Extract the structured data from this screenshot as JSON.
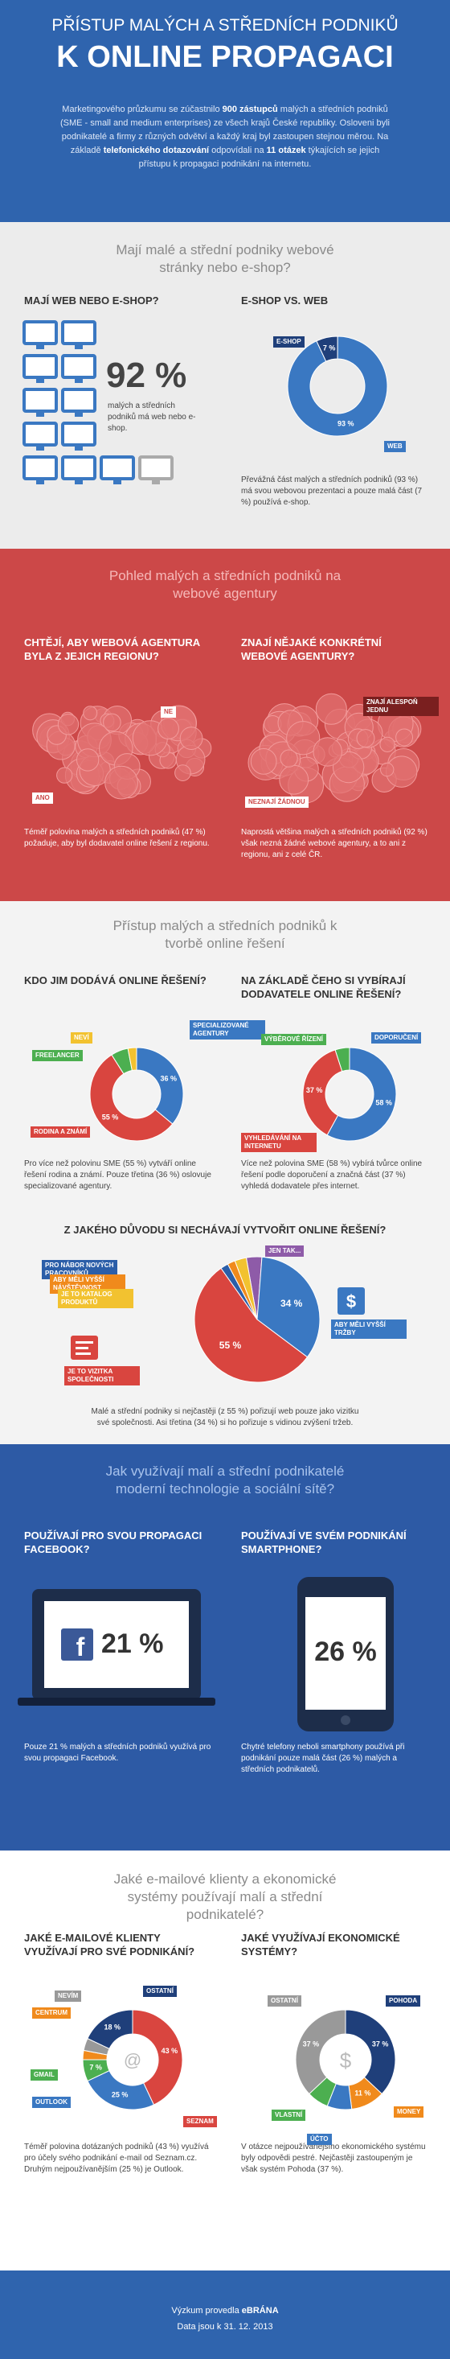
{
  "header": {
    "title_top": "PŘÍSTUP MALÝCH A STŘEDNÍCH PODNIKŮ",
    "title_main": "K ONLINE PROPAGACI",
    "intro": [
      "Marketingového průzkumu se zúčastnilo ",
      "900 zástupců",
      " malých a středních podniků (SME - small and medium enterprises) ze všech krajů České republiky. Osloveni byli podnikatelé a firmy z různých odvětví a každý kraj byl zastoupen stejnou měrou. Na základě ",
      "telefonického dotazování",
      " odpovídali na ",
      "11 otázek",
      " týkajících se jejich přístupu k propagaci podnikání na internetu."
    ]
  },
  "web": {
    "heading": "Mají malé a střední podniky webové stránky nebo e-shop?",
    "has_web": {
      "title": "MAJÍ WEB NEBO E-SHOP?",
      "value": 92,
      "value_label": "92 %",
      "caption": "malých a středních podniků má web nebo e-shop."
    },
    "eshop_vs_web": {
      "type": "donut",
      "title": "E-SHOP VS. WEB",
      "categories": [
        "E-SHOP",
        "WEB"
      ],
      "values": [
        7,
        93
      ],
      "value_labels": [
        "7 %",
        "93 %"
      ],
      "colors": [
        "#1f3f7a",
        "#3a78c2"
      ],
      "text": "Převážná část malých a středních podniků (93 %) má svou webovou prezentaci a pouze malá část (7 %) používá e-shop."
    }
  },
  "agencies": {
    "heading": "Pohled malých a středních podniků na webové agentury",
    "regional": {
      "title": "CHTĚJÍ, ABY WEBOVÁ AGENTURA BYLA Z JEJICH REGIONU?",
      "labels": [
        "NE",
        "ANO"
      ],
      "text": "Téměř polovina malých a středních podniků (47 %) požaduje, aby byl dodavatel online řešení z regionu."
    },
    "known": {
      "title": "ZNAJÍ NĚJAKÉ KONKRÉTNÍ WEBOVÉ AGENTURY?",
      "labels": [
        "ZNAJÍ ALESPOŇ JEDNU",
        "NEZNAJÍ ŽÁDNOU"
      ],
      "text": "Naprostá většina malých a středních podniků (92 %) však nezná žádné webové agentury, a to ani z regionu, ani z celé ČR."
    }
  },
  "solutions": {
    "heading": "Přístup malých a středních podniků k tvorbě online řešení",
    "supplier": {
      "type": "donut",
      "title": "KDO JIM DODÁVÁ ONLINE ŘEŠENÍ?",
      "categories": [
        "SPECIALIZOVANÉ AGENTURY",
        "RODINA A ZNÁMÍ",
        "FREELANCER",
        "NEVÍ"
      ],
      "values": [
        36,
        55,
        6,
        3
      ],
      "value_labels": [
        "36 %",
        "55 %",
        null,
        null
      ],
      "colors": [
        "#3a78c2",
        "#d9453f",
        "#4caf50",
        "#f2c230"
      ],
      "text": "Pro více než polovinu SME (55 %) vytváří online řešení rodina a známí. Pouze třetina (36 %) oslovuje specializované agentury."
    },
    "selection": {
      "type": "donut",
      "title": "NA ZÁKLADĚ ČEHO SI VYBÍRAJÍ DODAVATELE ONLINE ŘEŠENÍ?",
      "categories": [
        "DOPORUČENÍ",
        "VYHLEDÁVÁNÍ NA INTERNETU",
        "VÝBĚROVÉ ŘÍZENÍ"
      ],
      "values": [
        58,
        37,
        5
      ],
      "value_labels": [
        "58 %",
        "37 %",
        null
      ],
      "colors": [
        "#3a78c2",
        "#d9453f",
        "#4caf50"
      ],
      "text": "Více než polovina SME (58 %) vybírá tvůrce online řešení podle doporučení a značná část (37 %) vyhledá dodavatele přes internet."
    },
    "reasons": {
      "type": "pie",
      "title": "Z JAKÉHO DŮVODU SI NECHÁVAJÍ VYTVOŘIT ONLINE ŘEŠENÍ?",
      "categories": [
        "JEN TAK...",
        "ABY MĚLI VYŠŠÍ TRŽBY",
        "JE TO VIZITKA SPOLEČNOSTI",
        "PRO NÁBOR NOVÝCH PRACOVNÍKŮ",
        "ABY MĚLI VYŠŠÍ NÁVŠTĚVNOST",
        "JE TO KATALOG PRODUKTŮ"
      ],
      "values": [
        4,
        34,
        55,
        2,
        2,
        3
      ],
      "value_labels": [
        null,
        "34 %",
        "55 %",
        null,
        null,
        null
      ],
      "colors": [
        "#8e5ba8",
        "#3a78c2",
        "#d9453f",
        "#2b5ea8",
        "#f08a1c",
        "#f2c230"
      ],
      "text": "Malé a střední podniky si nejčastěji (z 55 %) pořizují web pouze jako vizitku své společnosti. Asi třetina (34 %) si ho pořizuje s vidinou zvýšení tržeb."
    }
  },
  "technology": {
    "heading": "Jak využívají malí a střední podnikatelé moderní technologie a sociální sítě?",
    "facebook": {
      "title": "POUŽÍVAJÍ PRO SVOU PROPAGACI FACEBOOK?",
      "value": 21,
      "value_label": "21 %",
      "text": "Pouze 21 % malých a středních podniků využívá pro svou propagaci Facebook."
    },
    "smartphone": {
      "title": "POUŽÍVAJÍ VE SVÉM PODNIKÁNÍ SMARTPHONE?",
      "value": 26,
      "value_label": "26 %",
      "text": "Chytré telefony neboli smartphony používá při podnikání pouze malá část (26 %) malých a středních podnikatelů."
    }
  },
  "systems": {
    "heading": "Jaké e-mailové klienty a ekonomické systémy používají malí a střední podnikatelé?",
    "email": {
      "type": "donut",
      "title": "JAKÉ E-MAILOVÉ KLIENTY VYUŽÍVAJÍ PRO SVÉ PODNIKÁNÍ?",
      "categories": [
        "SEZNAM",
        "OUTLOOK",
        "GMAIL",
        "CENTRUM",
        "NEVÍM",
        "OSTATNÍ"
      ],
      "values": [
        43,
        25,
        7,
        3,
        4,
        18
      ],
      "value_labels": [
        "43 %",
        "25 %",
        "7 %",
        null,
        null,
        "18 %"
      ],
      "colors": [
        "#d9453f",
        "#3a78c2",
        "#4caf50",
        "#f08a1c",
        "#999999",
        "#1f3f7a"
      ],
      "text": "Téměř polovina dotázaných podniků (43 %) využívá pro účely svého podnikání e-mail od Seznam.cz. Druhým nejpoužívanějším (25 %) je Outlook."
    },
    "economic": {
      "type": "donut",
      "title": "JAKÉ VYUŽÍVAJÍ EKONOMICKÉ SYSTÉMY?",
      "categories": [
        "POHODA",
        "MONEY",
        "ÚČTO",
        "VLASTNÍ",
        "OSTATNÍ"
      ],
      "values": [
        37,
        11,
        8,
        7,
        37
      ],
      "value_labels": [
        "37 %",
        "11 %",
        null,
        null,
        "37 %"
      ],
      "colors": [
        "#1f3f7a",
        "#f08a1c",
        "#3a78c2",
        "#4caf50",
        "#999999"
      ],
      "text": "V otázce nejpoužívanějšího ekonomického systému byly odpovědi pestré. Nejčastěji zastoupeným je však systém Pohoda (37 %)."
    }
  },
  "footer": {
    "credit": "Výzkum provedla",
    "brand": "eBRÁNA",
    "date": "Data jsou k 31. 12. 2013"
  }
}
